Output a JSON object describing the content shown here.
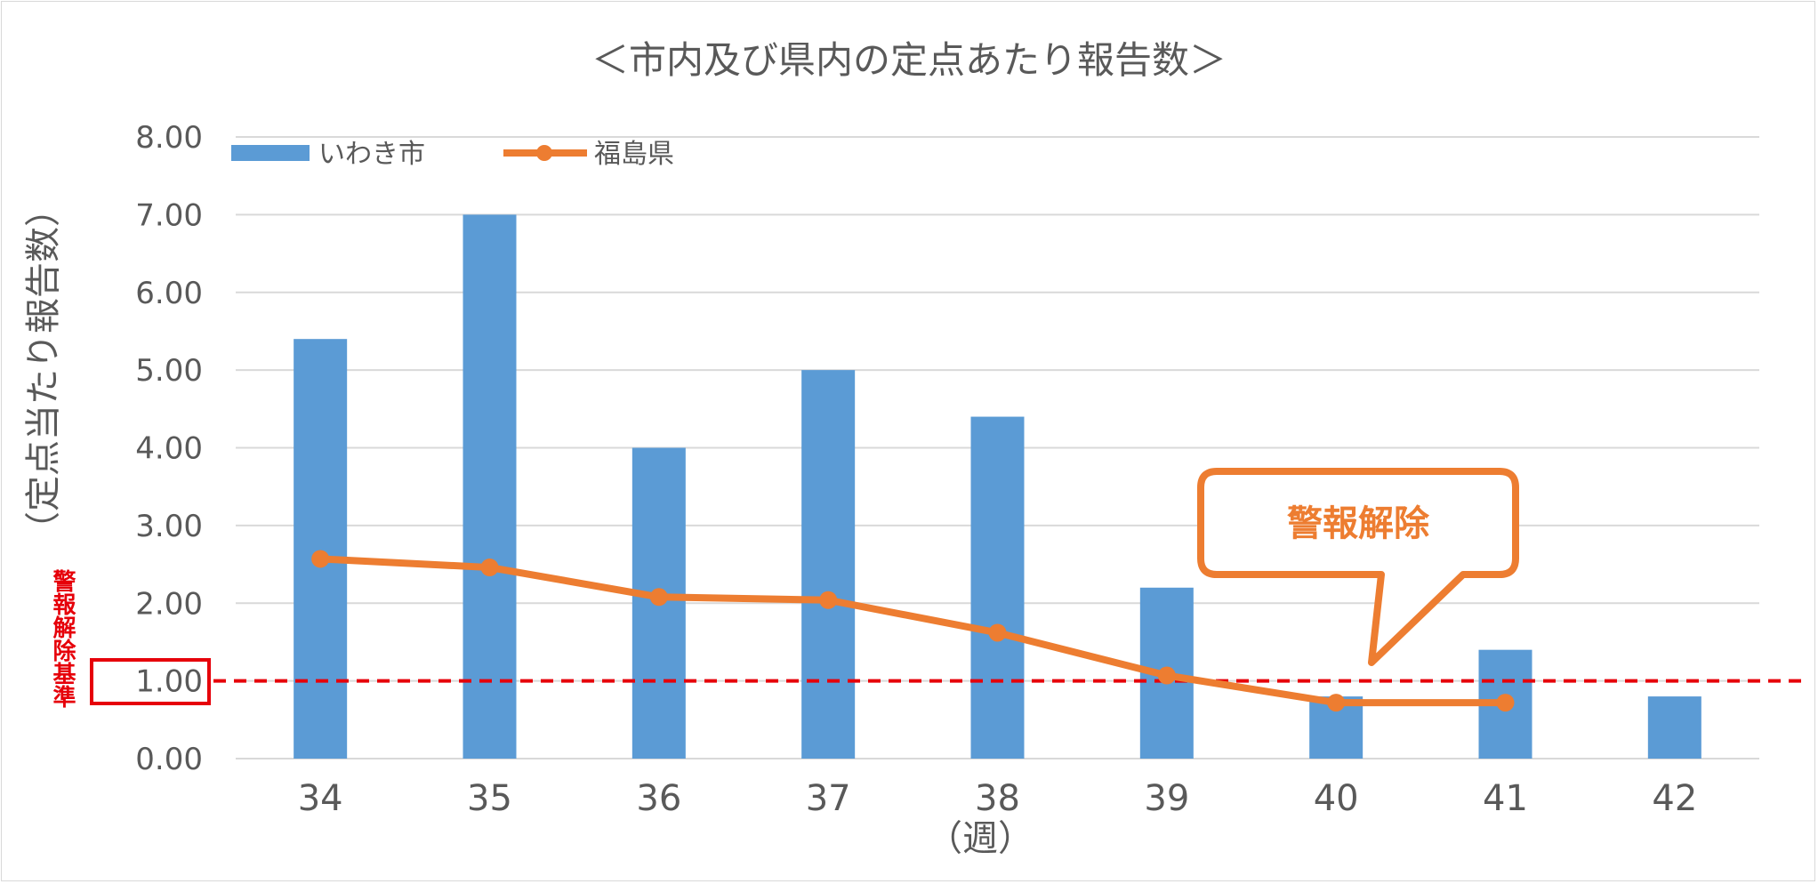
{
  "colors": {
    "bar": "#5b9bd5",
    "line": "#ed7d31",
    "grid": "#d9d9d9",
    "threshold": "#e6000a",
    "text": "#595959"
  },
  "chart_data": {
    "type": "bar",
    "title": "＜市内及び県内の定点あたり報告数＞",
    "xlabel": "（週）",
    "ylabel": "（定点当たり報告数）",
    "categories": [
      "34",
      "35",
      "36",
      "37",
      "38",
      "39",
      "40",
      "41",
      "42"
    ],
    "ylim": [
      0,
      8
    ],
    "yticks": [
      "0.00",
      "1.00",
      "2.00",
      "3.00",
      "4.00",
      "5.00",
      "6.00",
      "7.00",
      "8.00"
    ],
    "grid": true,
    "legend_position": "top-left",
    "series": [
      {
        "name": "いわき市",
        "type": "bar",
        "values": [
          5.4,
          7.0,
          4.0,
          5.0,
          4.4,
          2.2,
          0.8,
          1.4,
          0.8
        ]
      },
      {
        "name": "福島県",
        "type": "line",
        "values": [
          2.57,
          2.46,
          2.08,
          2.04,
          1.62,
          1.07,
          0.72,
          0.72,
          null
        ]
      }
    ],
    "threshold": {
      "value": 1.0,
      "label": "警報解除基準"
    },
    "annotation": {
      "text": "警報解除",
      "target_category": "40"
    }
  }
}
